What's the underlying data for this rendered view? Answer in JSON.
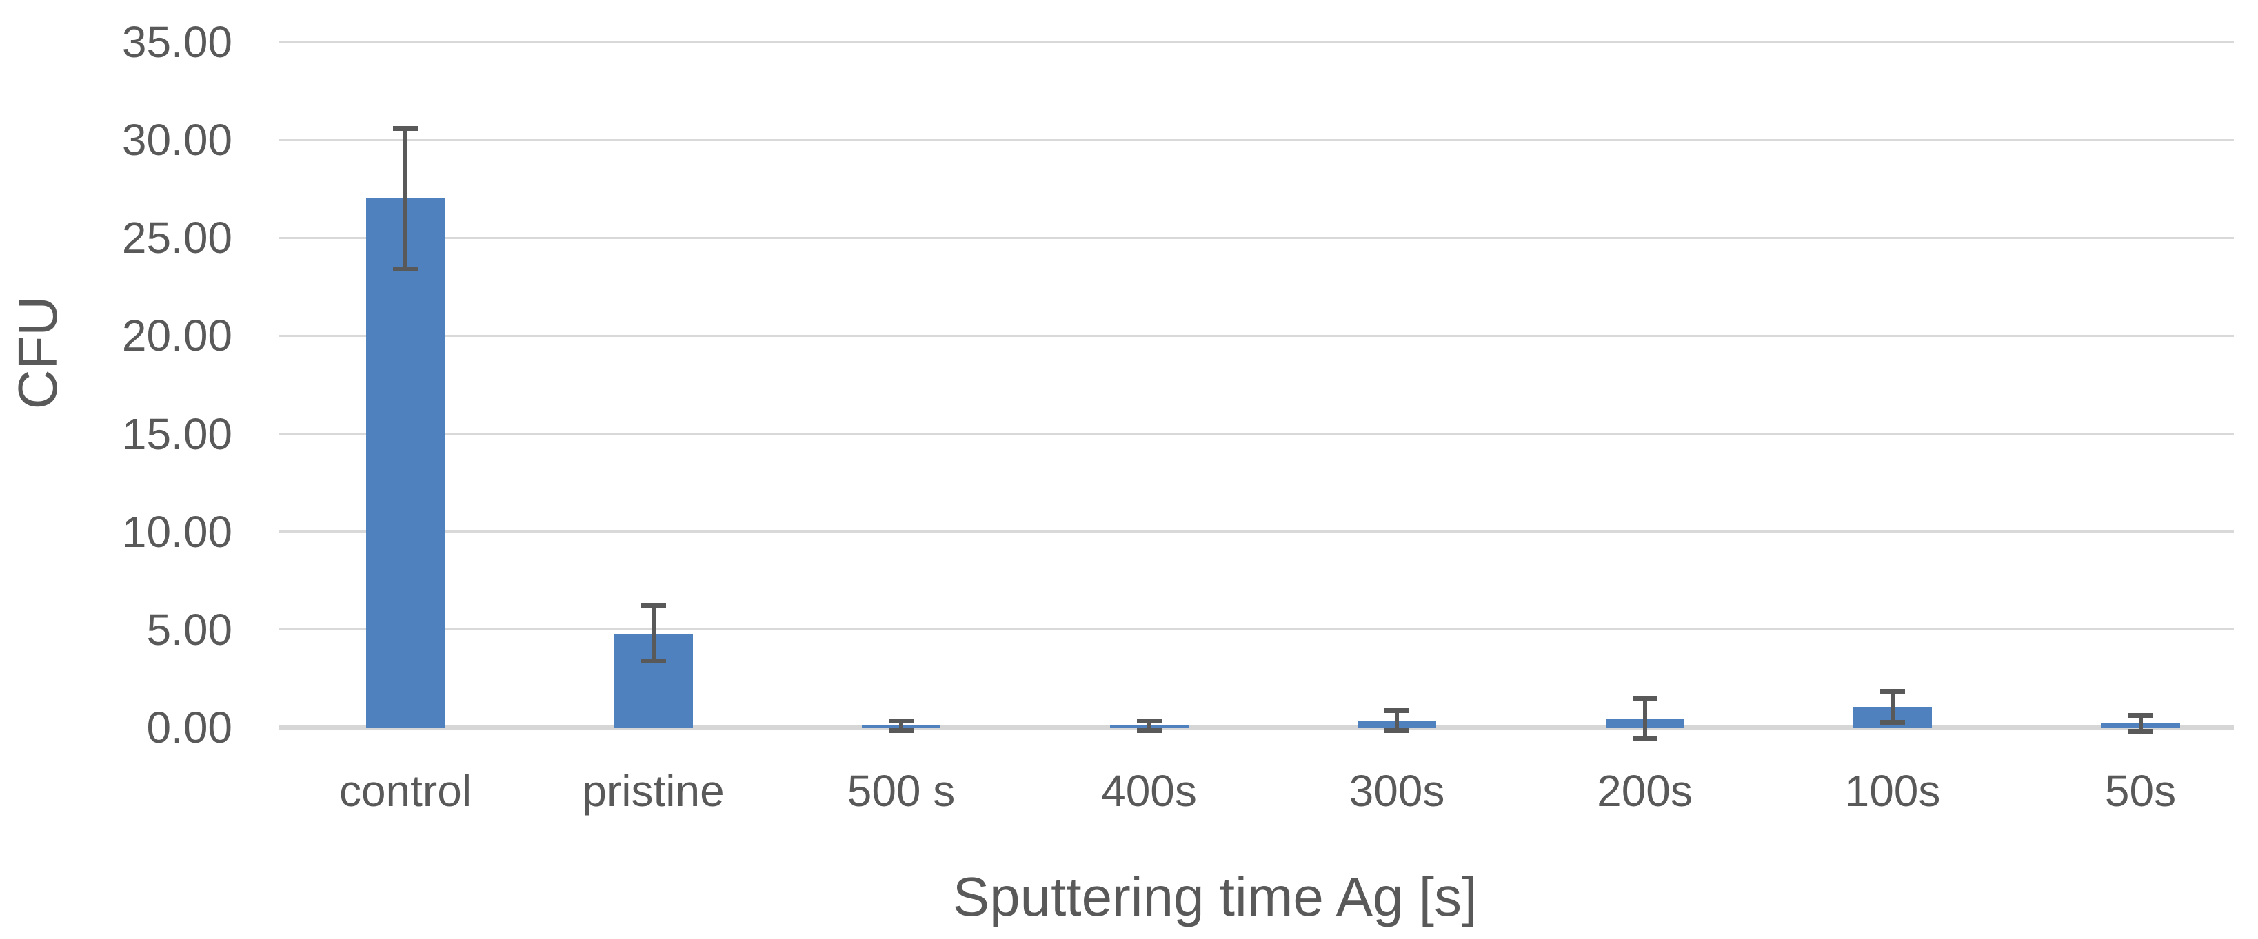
{
  "chart_data": {
    "type": "bar",
    "title": "",
    "xlabel": "Sputtering time Ag [s]",
    "ylabel": "CFU",
    "categories": [
      "control",
      "pristine",
      "500 s",
      "400s",
      "300s",
      "200s",
      "100s",
      "50s"
    ],
    "values": [
      27.0,
      4.8,
      0.1,
      0.1,
      0.35,
      0.45,
      1.05,
      0.22
    ],
    "errors": [
      3.6,
      1.4,
      0.25,
      0.25,
      0.5,
      1.0,
      0.8,
      0.4
    ],
    "ylim": [
      0,
      35
    ],
    "ytick_step": 5,
    "ytick_labels": [
      "0.00",
      "5.00",
      "10.00",
      "15.00",
      "20.00",
      "25.00",
      "30.00",
      "35.00"
    ],
    "grid": true,
    "legend": false,
    "error_bars": true,
    "colors": {
      "bar": "#4E81BD",
      "error_bar": "#595959",
      "gridline": "#D9D9D9",
      "axis_line": "#D6D6D6",
      "text": "#595959",
      "background": "#FFFFFF"
    }
  }
}
